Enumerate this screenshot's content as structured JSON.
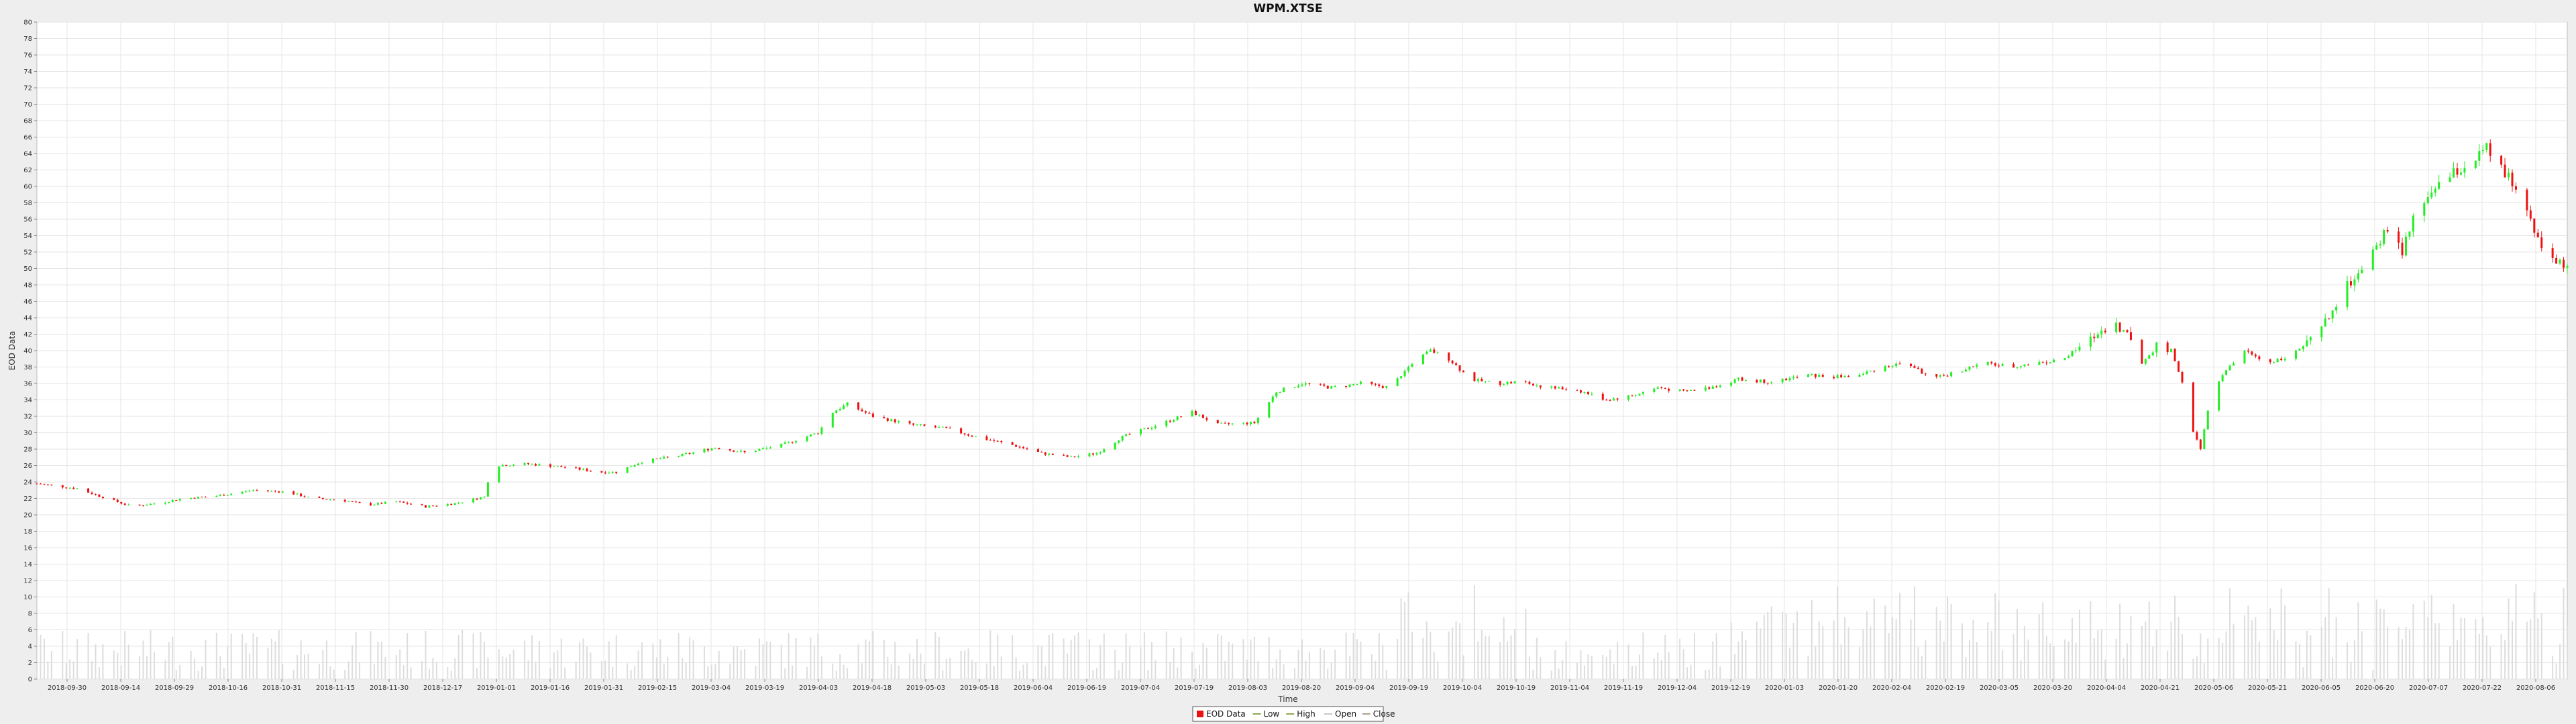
{
  "chart_data": {
    "type": "candlestick",
    "title": "WPM.XTSE",
    "xlabel": "Time",
    "ylabel": "EOD Data",
    "ylim": [
      0,
      80
    ],
    "y_ticks": [
      0,
      2,
      4,
      6,
      8,
      10,
      12,
      14,
      16,
      18,
      20,
      22,
      24,
      26,
      28,
      30,
      32,
      34,
      36,
      38,
      40,
      42,
      44,
      46,
      48,
      50,
      52,
      54,
      56,
      58,
      60,
      62,
      64,
      66,
      68,
      70,
      72,
      74,
      76,
      78,
      80
    ],
    "x_start": "2018-09-24",
    "x_end": "2020-08-14",
    "x_ticks": [
      "2018-09-30",
      "2018-09-14",
      "2018-09-29",
      "2018-10-16",
      "2018-10-31",
      "2018-11-15",
      "2018-11-30",
      "2018-12-17",
      "2019-01-01",
      "2019-01-16",
      "2019-01-31",
      "2019-02-15",
      "2019-03-04",
      "2019-03-19",
      "2019-04-03",
      "2019-04-18",
      "2019-05-03",
      "2019-05-18",
      "2019-06-04",
      "2019-06-19",
      "2019-07-04",
      "2019-07-19",
      "2019-08-03",
      "2019-08-20",
      "2019-09-04",
      "2019-09-19",
      "2019-10-04",
      "2019-10-19",
      "2019-11-04",
      "2019-11-19",
      "2019-12-04",
      "2019-12-19",
      "2020-01-03",
      "2020-01-20",
      "2020-02-04",
      "2020-02-19",
      "2020-03-05",
      "2020-03-20",
      "2020-04-04",
      "2020-04-21",
      "2020-05-06",
      "2020-05-21",
      "2020-06-05",
      "2020-06-20",
      "2020-07-07",
      "2020-07-22",
      "2020-08-06"
    ],
    "close_anchors": [
      [
        "2018-09-24",
        23.8
      ],
      [
        "2018-10-05",
        23.2
      ],
      [
        "2018-10-13",
        22.0
      ],
      [
        "2018-10-20",
        21.0
      ],
      [
        "2018-10-28",
        21.5
      ],
      [
        "2018-11-03",
        22.0
      ],
      [
        "2018-11-12",
        22.3
      ],
      [
        "2018-11-22",
        23.0
      ],
      [
        "2018-12-01",
        22.8
      ],
      [
        "2018-12-08",
        22.0
      ],
      [
        "2018-12-16",
        21.8
      ],
      [
        "2018-12-23",
        21.2
      ],
      [
        "2018-12-31",
        21.6
      ],
      [
        "2019-01-08",
        21.0
      ],
      [
        "2019-01-16",
        21.4
      ],
      [
        "2019-01-24",
        22.2
      ],
      [
        "2019-01-26",
        26.0
      ],
      [
        "2019-02-05",
        26.2
      ],
      [
        "2019-02-15",
        25.8
      ],
      [
        "2019-02-25",
        25.2
      ],
      [
        "2019-03-01",
        25.2
      ],
      [
        "2019-03-08",
        26.5
      ],
      [
        "2019-03-18",
        27.2
      ],
      [
        "2019-03-28",
        28.2
      ],
      [
        "2019-04-05",
        27.6
      ],
      [
        "2019-04-15",
        28.5
      ],
      [
        "2019-04-25",
        30.0
      ],
      [
        "2019-04-29",
        32.5
      ],
      [
        "2019-05-03",
        33.5
      ],
      [
        "2019-05-10",
        32.0
      ],
      [
        "2019-05-20",
        31.0
      ],
      [
        "2019-05-30",
        30.5
      ],
      [
        "2019-06-07",
        29.5
      ],
      [
        "2019-06-17",
        28.5
      ],
      [
        "2019-06-25",
        27.5
      ],
      [
        "2019-07-03",
        27.0
      ],
      [
        "2019-07-10",
        27.5
      ],
      [
        "2019-07-17",
        29.5
      ],
      [
        "2019-07-27",
        31.0
      ],
      [
        "2019-08-05",
        32.5
      ],
      [
        "2019-08-12",
        31.0
      ],
      [
        "2019-08-22",
        31.2
      ],
      [
        "2019-08-28",
        35.0
      ],
      [
        "2019-09-04",
        36.0
      ],
      [
        "2019-09-12",
        35.5
      ],
      [
        "2019-09-20",
        36.0
      ],
      [
        "2019-09-28",
        35.5
      ],
      [
        "2019-10-04",
        38.5
      ],
      [
        "2019-10-09",
        40.0
      ],
      [
        "2019-10-14",
        39.0
      ],
      [
        "2019-10-20",
        36.5
      ],
      [
        "2019-10-27",
        36.0
      ],
      [
        "2019-11-03",
        36.2
      ],
      [
        "2019-11-10",
        35.5
      ],
      [
        "2019-11-18",
        35.2
      ],
      [
        "2019-11-26",
        34.0
      ],
      [
        "2019-12-03",
        34.5
      ],
      [
        "2019-12-10",
        35.5
      ],
      [
        "2019-12-17",
        35.0
      ],
      [
        "2019-12-24",
        35.5
      ],
      [
        "2020-01-01",
        36.5
      ],
      [
        "2020-01-10",
        36.2
      ],
      [
        "2020-01-20",
        37.0
      ],
      [
        "2020-01-27",
        36.8
      ],
      [
        "2020-02-03",
        37.0
      ],
      [
        "2020-02-09",
        38.0
      ],
      [
        "2020-02-16",
        38.5
      ],
      [
        "2020-02-23",
        36.5
      ],
      [
        "2020-03-01",
        37.5
      ],
      [
        "2020-03-08",
        38.5
      ],
      [
        "2020-03-15",
        38.0
      ],
      [
        "2020-03-22",
        38.5
      ],
      [
        "2020-03-29",
        38.8
      ],
      [
        "2020-04-05",
        41.0
      ],
      [
        "2020-04-12",
        43.5
      ],
      [
        "2020-04-16",
        42.0
      ],
      [
        "2020-04-20",
        38.5
      ],
      [
        "2020-04-24",
        40.5
      ],
      [
        "2020-04-28",
        40.0
      ],
      [
        "2020-05-02",
        35.0
      ],
      [
        "2020-05-04",
        30.0
      ],
      [
        "2020-05-06",
        28.0
      ],
      [
        "2020-05-09",
        35.0
      ],
      [
        "2020-05-13",
        37.5
      ],
      [
        "2020-05-18",
        40.0
      ],
      [
        "2020-05-24",
        38.5
      ],
      [
        "2020-05-31",
        39.5
      ],
      [
        "2020-06-06",
        41.5
      ],
      [
        "2020-06-10",
        44.0
      ],
      [
        "2020-06-14",
        47.5
      ],
      [
        "2020-06-20",
        50.0
      ],
      [
        "2020-06-26",
        55.0
      ],
      [
        "2020-06-30",
        52.0
      ],
      [
        "2020-07-04",
        57.0
      ],
      [
        "2020-07-09",
        60.0
      ],
      [
        "2020-07-14",
        61.5
      ],
      [
        "2020-07-19",
        63.0
      ],
      [
        "2020-07-23",
        64.5
      ],
      [
        "2020-07-27",
        62.0
      ],
      [
        "2020-07-31",
        60.0
      ],
      [
        "2020-08-03",
        57.0
      ],
      [
        "2020-08-07",
        53.0
      ],
      [
        "2020-08-10",
        51.0
      ],
      [
        "2020-08-14",
        50.0
      ]
    ],
    "legend_position": "bottom-center",
    "legend": [
      {
        "label": "EOD Data",
        "color": "#ee1111"
      },
      {
        "label": "Low",
        "color": "#8fa84f"
      },
      {
        "label": "High",
        "color": "#8fa84f"
      },
      {
        "label": "Open",
        "color": "#c8c8c8"
      },
      {
        "label": "Close",
        "color": "#b0a090"
      }
    ],
    "colors": {
      "up": "#22ee22",
      "down": "#ee1111",
      "volume": "#dddddd",
      "grid": "#e6e6e6"
    }
  }
}
